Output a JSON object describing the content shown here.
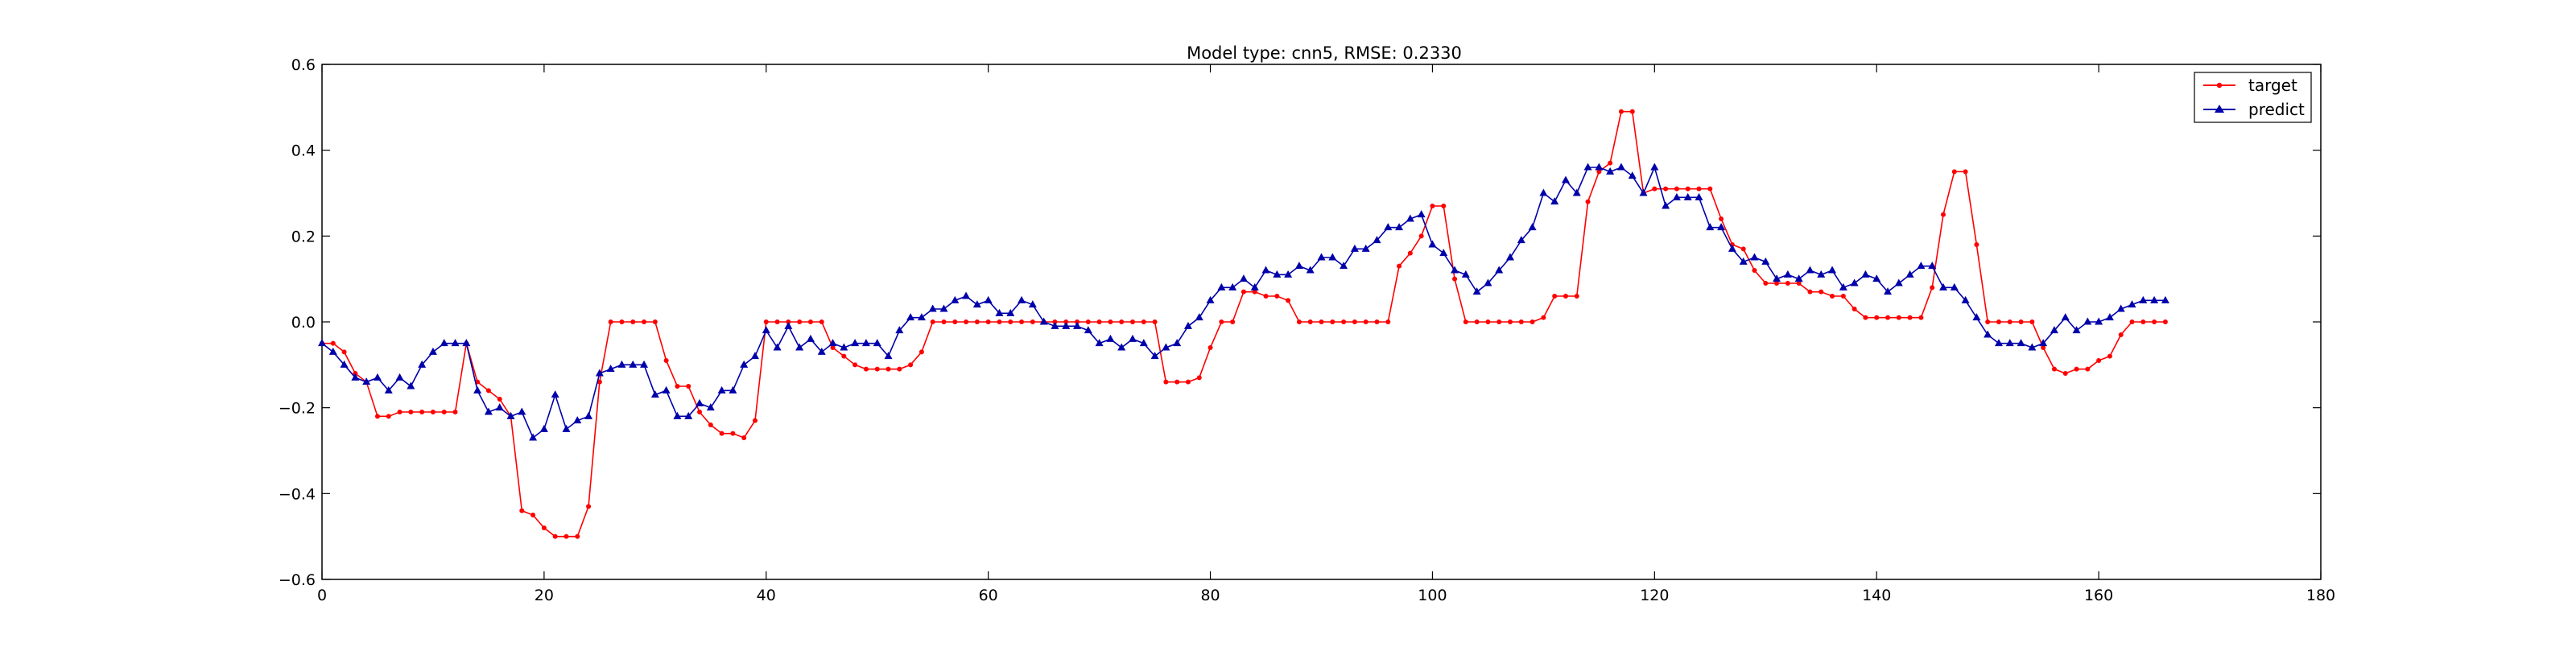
{
  "chart_data": {
    "type": "line",
    "title": "Model type: cnn5, RMSE: 0.2330",
    "xlabel": "",
    "ylabel": "",
    "xlim": [
      0,
      180
    ],
    "ylim": [
      -0.6,
      0.6
    ],
    "xticks": [
      0,
      20,
      40,
      60,
      80,
      100,
      120,
      140,
      160,
      180
    ],
    "yticks": [
      -0.6,
      -0.4,
      -0.2,
      0.0,
      0.2,
      0.4,
      0.6
    ],
    "xtick_labels": [
      "0",
      "20",
      "40",
      "60",
      "80",
      "100",
      "120",
      "140",
      "160",
      "180"
    ],
    "ytick_labels": [
      "−0.6",
      "−0.4",
      "−0.2",
      "0.0",
      "0.2",
      "0.4",
      "0.6"
    ],
    "grid": false,
    "legend": {
      "placement": "top-right",
      "entries": [
        "target",
        "predict"
      ]
    },
    "colors": {
      "target": "#ff0000",
      "predict": "#0000aa"
    },
    "series": [
      {
        "name": "target",
        "marker": "dot",
        "values": [
          -0.05,
          -0.05,
          -0.07,
          -0.12,
          -0.14,
          -0.22,
          -0.22,
          -0.21,
          -0.21,
          -0.21,
          -0.21,
          -0.21,
          -0.21,
          -0.05,
          -0.14,
          -0.16,
          -0.18,
          -0.22,
          -0.44,
          -0.45,
          -0.48,
          -0.5,
          -0.5,
          -0.5,
          -0.43,
          -0.14,
          0.0,
          0.0,
          0.0,
          0.0,
          0.0,
          -0.09,
          -0.15,
          -0.15,
          -0.21,
          -0.24,
          -0.26,
          -0.26,
          -0.27,
          -0.23,
          0.0,
          0.0,
          0.0,
          0.0,
          0.0,
          0.0,
          -0.06,
          -0.08,
          -0.1,
          -0.11,
          -0.11,
          -0.11,
          -0.11,
          -0.1,
          -0.07,
          0.0,
          0.0,
          0.0,
          0.0,
          0.0,
          0.0,
          0.0,
          0.0,
          0.0,
          0.0,
          0.0,
          0.0,
          0.0,
          0.0,
          0.0,
          0.0,
          0.0,
          0.0,
          0.0,
          0.0,
          0.0,
          -0.14,
          -0.14,
          -0.14,
          -0.13,
          -0.06,
          0.0,
          0.0,
          0.07,
          0.07,
          0.06,
          0.06,
          0.05,
          0.0,
          0.0,
          0.0,
          0.0,
          0.0,
          0.0,
          0.0,
          0.0,
          0.0,
          0.13,
          0.16,
          0.2,
          0.27,
          0.27,
          0.1,
          0.0,
          0.0,
          0.0,
          0.0,
          0.0,
          0.0,
          0.0,
          0.01,
          0.06,
          0.06,
          0.06,
          0.28,
          0.35,
          0.37,
          0.49,
          0.49,
          0.3,
          0.31,
          0.31,
          0.31,
          0.31,
          0.31,
          0.31,
          0.24,
          0.18,
          0.17,
          0.12,
          0.09,
          0.09,
          0.09,
          0.09,
          0.07,
          0.07,
          0.06,
          0.06,
          0.03,
          0.01,
          0.01,
          0.01,
          0.01,
          0.01,
          0.01,
          0.08,
          0.25,
          0.35,
          0.35,
          0.18,
          0.0,
          0.0,
          0.0,
          0.0,
          0.0,
          -0.06,
          -0.11,
          -0.12,
          -0.11,
          -0.11,
          -0.09,
          -0.08,
          -0.03,
          0.0,
          0.0,
          0.0,
          0.0
        ]
      },
      {
        "name": "predict",
        "marker": "triangle",
        "values": [
          -0.05,
          -0.07,
          -0.1,
          -0.13,
          -0.14,
          -0.13,
          -0.16,
          -0.13,
          -0.15,
          -0.1,
          -0.07,
          -0.05,
          -0.05,
          -0.05,
          -0.16,
          -0.21,
          -0.2,
          -0.22,
          -0.21,
          -0.27,
          -0.25,
          -0.17,
          -0.25,
          -0.23,
          -0.22,
          -0.12,
          -0.11,
          -0.1,
          -0.1,
          -0.1,
          -0.17,
          -0.16,
          -0.22,
          -0.22,
          -0.19,
          -0.2,
          -0.16,
          -0.16,
          -0.1,
          -0.08,
          -0.02,
          -0.06,
          -0.01,
          -0.06,
          -0.04,
          -0.07,
          -0.05,
          -0.06,
          -0.05,
          -0.05,
          -0.05,
          -0.08,
          -0.02,
          0.01,
          0.01,
          0.03,
          0.03,
          0.05,
          0.06,
          0.04,
          0.05,
          0.02,
          0.02,
          0.05,
          0.04,
          0.0,
          -0.01,
          -0.01,
          -0.01,
          -0.02,
          -0.05,
          -0.04,
          -0.06,
          -0.04,
          -0.05,
          -0.08,
          -0.06,
          -0.05,
          -0.01,
          0.01,
          0.05,
          0.08,
          0.08,
          0.1,
          0.08,
          0.12,
          0.11,
          0.11,
          0.13,
          0.12,
          0.15,
          0.15,
          0.13,
          0.17,
          0.17,
          0.19,
          0.22,
          0.22,
          0.24,
          0.25,
          0.18,
          0.16,
          0.12,
          0.11,
          0.07,
          0.09,
          0.12,
          0.15,
          0.19,
          0.22,
          0.3,
          0.28,
          0.33,
          0.3,
          0.36,
          0.36,
          0.35,
          0.36,
          0.34,
          0.3,
          0.36,
          0.27,
          0.29,
          0.29,
          0.29,
          0.22,
          0.22,
          0.17,
          0.14,
          0.15,
          0.14,
          0.1,
          0.11,
          0.1,
          0.12,
          0.11,
          0.12,
          0.08,
          0.09,
          0.11,
          0.1,
          0.07,
          0.09,
          0.11,
          0.13,
          0.13,
          0.08,
          0.08,
          0.05,
          0.01,
          -0.03,
          -0.05,
          -0.05,
          -0.05,
          -0.06,
          -0.05,
          -0.02,
          0.01,
          -0.02,
          0.0,
          0.0,
          0.01,
          0.03,
          0.04,
          0.05,
          0.05,
          0.05
        ]
      }
    ]
  }
}
